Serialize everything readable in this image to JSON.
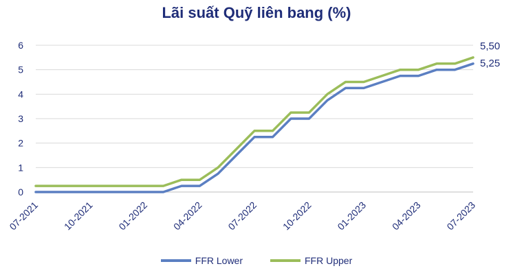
{
  "chart_data": {
    "type": "line",
    "title": "Lãi suất Quỹ liên bang (%)",
    "xlabel": "",
    "ylabel": "",
    "ylim": [
      0,
      6
    ],
    "yticks": [
      "0",
      "1",
      "2",
      "3",
      "4",
      "5",
      "6"
    ],
    "xtick_labels": [
      "07-2021",
      "10-2021",
      "01-2022",
      "04-2022",
      "07-2022",
      "10-2022",
      "01-2023",
      "04-2023",
      "07-2023"
    ],
    "grid": "horizontal",
    "legend_position": "bottom",
    "colors": {
      "lower": "#5b7fc2",
      "upper": "#9bbd5a"
    },
    "x": [
      "07-2021",
      "08-2021",
      "09-2021",
      "10-2021",
      "11-2021",
      "12-2021",
      "01-2022",
      "02-2022",
      "03-2022",
      "04-2022",
      "05-2022",
      "06-2022",
      "07-2022",
      "08-2022",
      "09-2022",
      "10-2022",
      "11-2022",
      "12-2022",
      "01-2023",
      "02-2023",
      "03-2023",
      "04-2023",
      "05-2023",
      "06-2023",
      "07-2023"
    ],
    "series": [
      {
        "name": "FFR Lower",
        "values": [
          0,
          0,
          0,
          0,
          0,
          0,
          0,
          0,
          0.25,
          0.25,
          0.75,
          1.5,
          2.25,
          2.25,
          3.0,
          3.0,
          3.75,
          4.25,
          4.25,
          4.5,
          4.75,
          4.75,
          5.0,
          5.0,
          5.25
        ]
      },
      {
        "name": "FFR Upper",
        "values": [
          0.25,
          0.25,
          0.25,
          0.25,
          0.25,
          0.25,
          0.25,
          0.25,
          0.5,
          0.5,
          1.0,
          1.75,
          2.5,
          2.5,
          3.25,
          3.25,
          4.0,
          4.5,
          4.5,
          4.75,
          5.0,
          5.0,
          5.25,
          5.25,
          5.5
        ]
      }
    ],
    "end_labels": [
      "5,50",
      "5,25"
    ]
  }
}
